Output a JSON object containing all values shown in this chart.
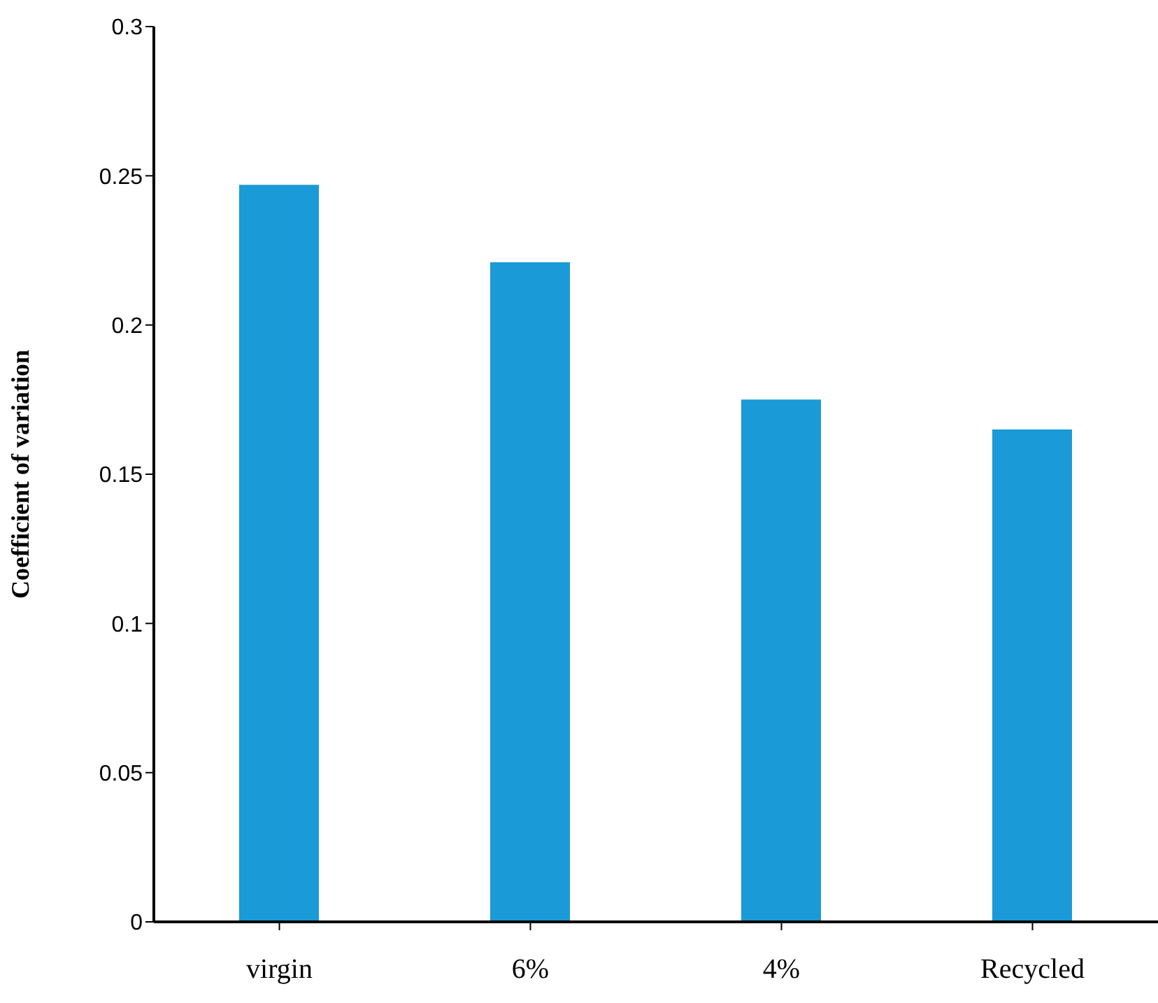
{
  "chart_data": {
    "type": "bar",
    "ylabel": "Coefficient of variation",
    "categories": [
      "virgin",
      "6%",
      "4%",
      "Recycled"
    ],
    "values": [
      0.247,
      0.221,
      0.175,
      0.165
    ],
    "color": "#1a9ad6",
    "ylim": [
      0,
      0.3
    ],
    "yticks": [
      0,
      0.05,
      0.1,
      0.15,
      0.2,
      0.25,
      0.3
    ],
    "grid": false,
    "legend": false
  }
}
